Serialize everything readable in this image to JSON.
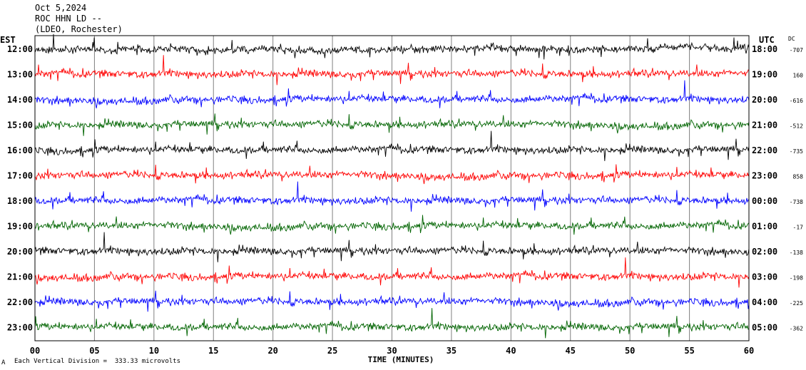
{
  "header": {
    "date": "Oct 5,2024",
    "station": "ROC HHN LD --",
    "network": "(LDEO, Rochester)"
  },
  "labels": {
    "left_timezone": "EST",
    "right_timezone": "UTC",
    "dc_header": "DC",
    "footer_note": "Each Vertical Division =  333.33 microvolts",
    "footer_symbol": "A"
  },
  "colors": {
    "black": "#000000",
    "red": "#ff0000",
    "blue": "#0000ff",
    "green": "#006400",
    "grid": "#808080"
  },
  "chart_data": {
    "type": "line",
    "xlabel": "TIME (MINUTES)",
    "xlim": [
      0,
      60
    ],
    "xticks": [
      "00",
      "05",
      "10",
      "15",
      "20",
      "25",
      "30",
      "35",
      "40",
      "45",
      "50",
      "55",
      "60"
    ],
    "rows": [
      {
        "est": "12:00",
        "utc": "18:00",
        "dc": "-707",
        "color": "black"
      },
      {
        "est": "13:00",
        "utc": "19:00",
        "dc": "160",
        "color": "red"
      },
      {
        "est": "14:00",
        "utc": "20:00",
        "dc": "-616",
        "color": "blue"
      },
      {
        "est": "15:00",
        "utc": "21:00",
        "dc": "-512",
        "color": "green"
      },
      {
        "est": "16:00",
        "utc": "22:00",
        "dc": "-735",
        "color": "black"
      },
      {
        "est": "17:00",
        "utc": "23:00",
        "dc": "858",
        "color": "red"
      },
      {
        "est": "18:00",
        "utc": "00:00",
        "dc": "-738",
        "color": "blue"
      },
      {
        "est": "19:00",
        "utc": "01:00",
        "dc": "-17",
        "color": "green"
      },
      {
        "est": "20:00",
        "utc": "02:00",
        "dc": "-138",
        "color": "black"
      },
      {
        "est": "21:00",
        "utc": "03:00",
        "dc": "-198",
        "color": "red"
      },
      {
        "est": "22:00",
        "utc": "04:00",
        "dc": "-225",
        "color": "blue"
      },
      {
        "est": "23:00",
        "utc": "05:00",
        "dc": "-362",
        "color": "green"
      }
    ]
  }
}
